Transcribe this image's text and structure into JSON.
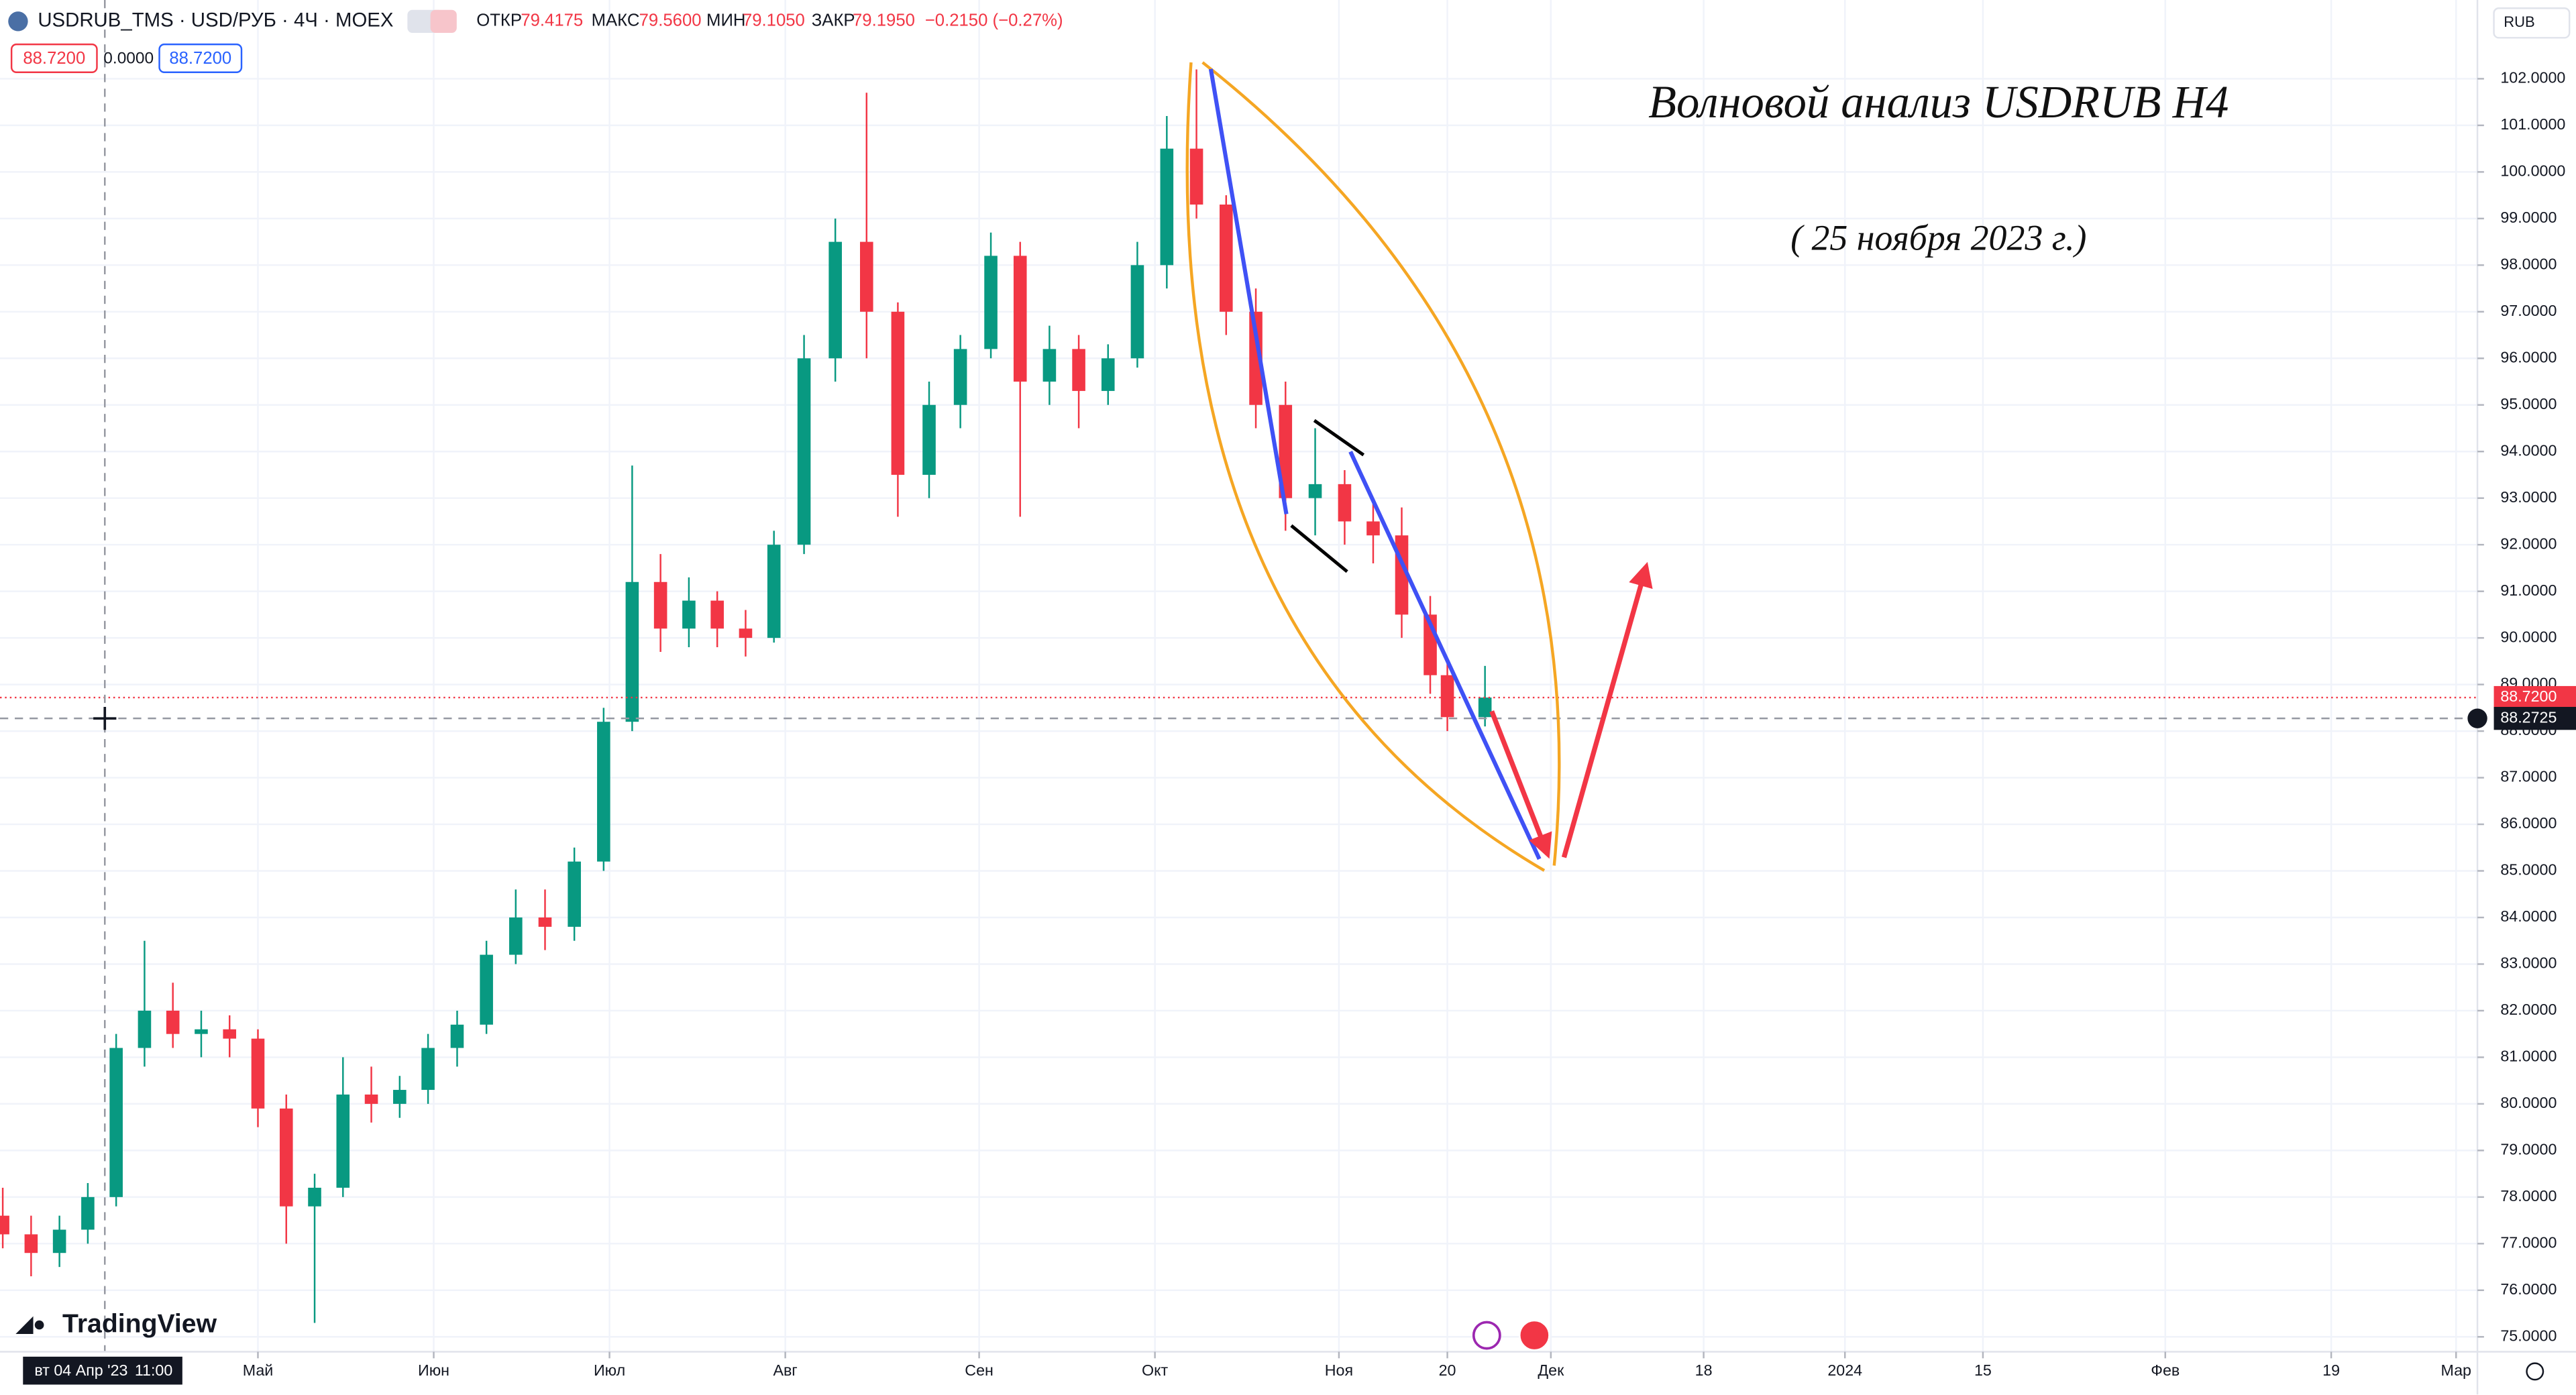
{
  "header": {
    "symbol": "USDRUB_TMS · USD/РУБ · 4Ч · MOEX",
    "open_label": "ОТКР",
    "open": "79.4175",
    "high_label": "МАКС",
    "high": "79.5600",
    "low_label": "МИН",
    "low": "79.1050",
    "close_label": "ЗАКР",
    "close": "79.1950",
    "change": "−0.2150 (−0.27%)"
  },
  "quote_boxes": [
    "88.7200",
    "0.0000",
    "88.7200"
  ],
  "currency": "RUB",
  "logo": "TradingView",
  "annotations": {
    "title": "Волновой анализ USDRUB H4",
    "date": "( 25 ноября 2023 г.)"
  },
  "chart_data": {
    "type": "candlestick",
    "x": [
      "2023-03-17",
      "2023-03-22",
      "2023-03-27",
      "2023-04-01",
      "2023-04-06",
      "2023-04-11",
      "2023-04-16",
      "2023-04-21",
      "2023-04-26",
      "2023-05-01",
      "2023-05-06",
      "2023-05-11",
      "2023-05-16",
      "2023-05-21",
      "2023-05-26",
      "2023-05-31",
      "2023-06-05",
      "2023-06-10",
      "2023-06-15",
      "2023-06-20",
      "2023-06-25",
      "2023-06-30",
      "2023-07-05",
      "2023-07-10",
      "2023-07-15",
      "2023-07-20",
      "2023-07-25",
      "2023-07-30",
      "2023-08-04",
      "2023-08-09",
      "2023-08-14",
      "2023-08-19",
      "2023-08-24",
      "2023-08-29",
      "2023-09-03",
      "2023-09-08",
      "2023-09-13",
      "2023-09-18",
      "2023-09-23",
      "2023-09-28",
      "2023-10-03",
      "2023-10-08",
      "2023-10-13",
      "2023-10-18",
      "2023-10-23",
      "2023-10-28",
      "2023-11-02",
      "2023-11-07",
      "2023-11-12",
      "2023-11-17",
      "2023-11-20",
      "2023-11-24"
    ],
    "open": [
      77.6,
      77.2,
      76.8,
      77.3,
      78.0,
      81.2,
      82.0,
      81.5,
      81.6,
      81.4,
      79.9,
      77.8,
      78.2,
      80.2,
      80.0,
      80.3,
      81.2,
      81.7,
      83.2,
      84.0,
      83.8,
      85.2,
      88.2,
      91.2,
      90.2,
      90.8,
      90.2,
      90.0,
      92.0,
      96.0,
      98.5,
      97.0,
      93.5,
      95.0,
      96.2,
      98.2,
      95.5,
      96.2,
      95.3,
      96.0,
      98.0,
      100.5,
      99.3,
      97.0,
      95.0,
      93.0,
      93.3,
      92.5,
      92.2,
      90.5,
      89.2,
      88.3
    ],
    "high": [
      78.2,
      77.6,
      77.6,
      78.3,
      81.5,
      83.5,
      82.6,
      82.0,
      81.9,
      81.6,
      80.2,
      78.5,
      81.0,
      80.8,
      80.6,
      81.5,
      82.0,
      83.5,
      84.6,
      84.6,
      85.5,
      88.5,
      93.7,
      91.8,
      91.3,
      91.0,
      90.6,
      92.3,
      96.5,
      99.0,
      101.7,
      97.2,
      95.5,
      96.5,
      98.7,
      98.5,
      96.7,
      96.5,
      96.3,
      98.5,
      101.2,
      102.2,
      99.5,
      97.5,
      95.5,
      94.5,
      93.6,
      93.0,
      92.8,
      90.9,
      89.5,
      89.4
    ],
    "low": [
      76.9,
      76.3,
      76.5,
      77.0,
      77.8,
      80.8,
      81.2,
      81.0,
      81.0,
      79.5,
      77.0,
      75.3,
      78.0,
      79.6,
      79.7,
      80.0,
      80.8,
      81.5,
      83.0,
      83.3,
      83.5,
      85.0,
      88.0,
      89.7,
      89.8,
      89.8,
      89.6,
      89.9,
      91.8,
      95.5,
      96.0,
      92.6,
      93.0,
      94.5,
      96.0,
      92.6,
      95.0,
      94.5,
      95.0,
      95.8,
      97.5,
      99.0,
      96.5,
      94.5,
      92.3,
      92.2,
      92.0,
      91.6,
      90.0,
      88.8,
      88.0,
      88.1
    ],
    "close": [
      77.2,
      76.8,
      77.3,
      78.0,
      81.2,
      82.0,
      81.5,
      81.6,
      81.4,
      79.9,
      77.8,
      78.2,
      80.2,
      80.0,
      80.3,
      81.2,
      81.7,
      83.2,
      84.0,
      83.8,
      85.2,
      88.2,
      91.2,
      90.2,
      90.8,
      90.2,
      90.0,
      92.0,
      96.0,
      98.5,
      97.0,
      93.5,
      95.0,
      96.2,
      98.2,
      95.5,
      96.2,
      95.3,
      96.0,
      98.0,
      100.5,
      99.3,
      97.0,
      95.0,
      93.0,
      93.3,
      92.5,
      92.2,
      90.5,
      89.2,
      88.3,
      88.72
    ],
    "up_color": "#089981",
    "down_color": "#f23645",
    "ylim": [
      74.68,
      103.69
    ],
    "yticks": [
      {
        "value": 75,
        "label": "75.0000"
      },
      {
        "value": 76,
        "label": "76.0000"
      },
      {
        "value": 77,
        "label": "77.0000"
      },
      {
        "value": 78,
        "label": "78.0000"
      },
      {
        "value": 79,
        "label": "79.0000"
      },
      {
        "value": 80,
        "label": "80.0000"
      },
      {
        "value": 81,
        "label": "81.0000"
      },
      {
        "value": 82,
        "label": "82.0000"
      },
      {
        "value": 83,
        "label": "83.0000"
      },
      {
        "value": 84,
        "label": "84.0000"
      },
      {
        "value": 85,
        "label": "85.0000"
      },
      {
        "value": 86,
        "label": "86.0000"
      },
      {
        "value": 87,
        "label": "87.0000"
      },
      {
        "value": 88,
        "label": "88.0000"
      },
      {
        "value": 89,
        "label": "89.0000"
      },
      {
        "value": 90,
        "label": "90.0000"
      },
      {
        "value": 91,
        "label": "91.0000"
      },
      {
        "value": 92,
        "label": "92.0000"
      },
      {
        "value": 93,
        "label": "93.0000"
      },
      {
        "value": 94,
        "label": "94.0000"
      },
      {
        "value": 95,
        "label": "95.0000"
      },
      {
        "value": 96,
        "label": "96.0000"
      },
      {
        "value": 97,
        "label": "97.0000"
      },
      {
        "value": 98,
        "label": "98.0000"
      },
      {
        "value": 99,
        "label": "99.0000"
      },
      {
        "value": 100,
        "label": "100.0000"
      },
      {
        "value": 101,
        "label": "101.0000"
      },
      {
        "value": 102,
        "label": "102.0000"
      }
    ],
    "xticks": [
      {
        "value": "2023-05-01",
        "label": "Май"
      },
      {
        "value": "2023-06-01",
        "label": "Июн"
      },
      {
        "value": "2023-07-01",
        "label": "Июл"
      },
      {
        "value": "2023-08-01",
        "label": "Авг"
      },
      {
        "value": "2023-09-01",
        "label": "Сен"
      },
      {
        "value": "2023-10-01",
        "label": "Окт"
      },
      {
        "value": "2023-11-01",
        "label": "Ноя"
      },
      {
        "value": "2023-11-20",
        "label": "20"
      },
      {
        "value": "2023-12-01",
        "label": "Дек"
      },
      {
        "value": "2023-12-18",
        "label": "18"
      },
      {
        "value": "2024-01-01",
        "label": "2024"
      },
      {
        "value": "2024-01-15",
        "label": "15"
      },
      {
        "value": "2024-02-01",
        "label": "Фев"
      },
      {
        "value": "2024-02-19",
        "label": "19"
      },
      {
        "value": "2024-03-01",
        "label": "Мар"
      }
    ],
    "grid": true,
    "last_price": {
      "value": 88.72,
      "label": "88.7200"
    },
    "crosshair": {
      "x": "2023-04-04",
      "date_label": "вт 04 Апр '23",
      "time_label": "11:00",
      "y": {
        "value": 88.2725,
        "label": "88.2725"
      }
    }
  }
}
